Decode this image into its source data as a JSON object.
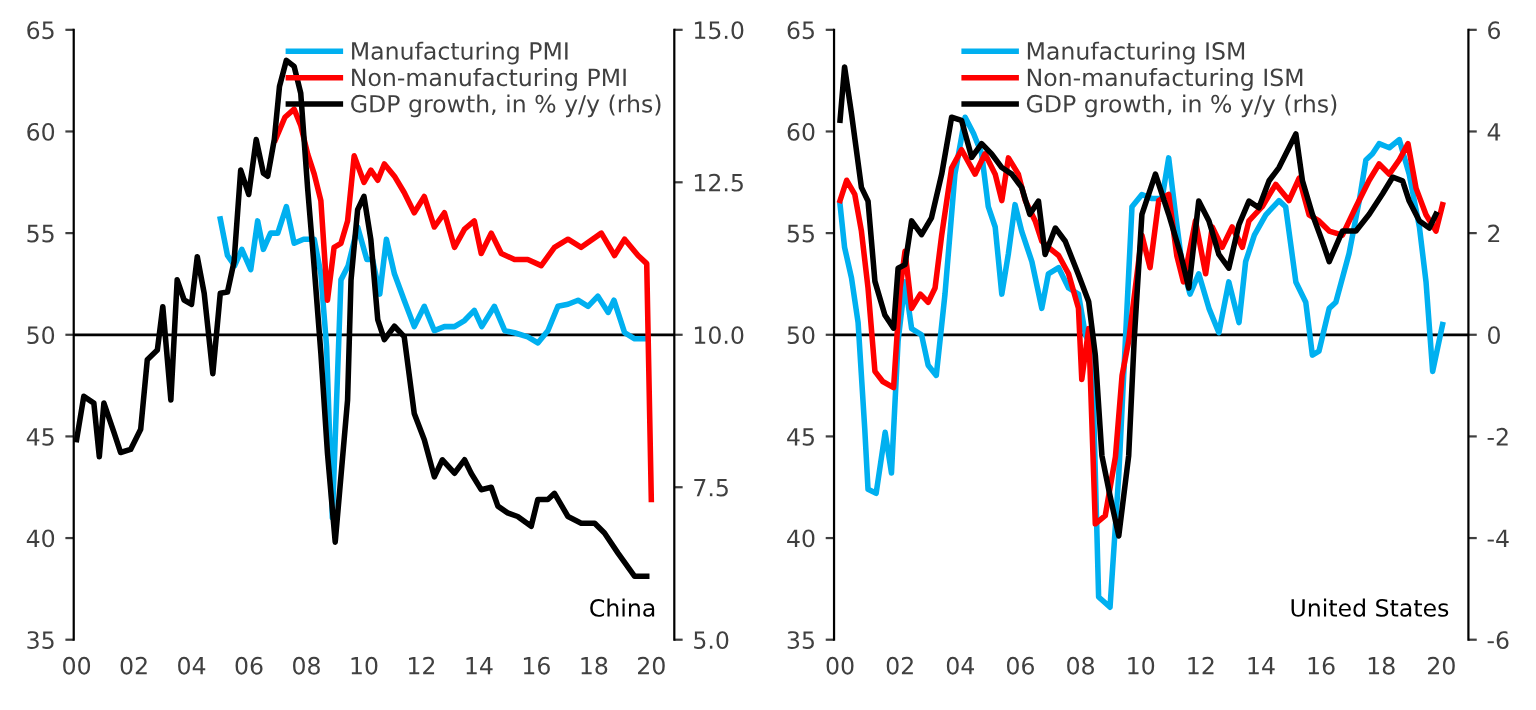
{
  "chart_data": [
    {
      "type": "line",
      "xlim": [
        1999.9,
        2020.8
      ],
      "xticks": [
        {
          "value": 2000,
          "label": "00"
        },
        {
          "value": 2002,
          "label": "02"
        },
        {
          "value": 2004,
          "label": "04"
        },
        {
          "value": 2006,
          "label": "06"
        },
        {
          "value": 2008,
          "label": "08"
        },
        {
          "value": 2010,
          "label": "10"
        },
        {
          "value": 2012,
          "label": "12"
        },
        {
          "value": 2014,
          "label": "14"
        },
        {
          "value": 2016,
          "label": "16"
        },
        {
          "value": 2018,
          "label": "18"
        },
        {
          "value": 2020,
          "label": "20"
        }
      ],
      "ylim": [
        35,
        65
      ],
      "yticks": [
        35,
        40,
        45,
        50,
        55,
        60,
        65
      ],
      "y2lim": [
        5,
        15
      ],
      "y2ticks": [
        {
          "value": 5,
          "label": "5.0"
        },
        {
          "value": 7.5,
          "label": "7.5"
        },
        {
          "value": 10,
          "label": "10.0"
        },
        {
          "value": 12.5,
          "label": "12.5"
        },
        {
          "value": 15,
          "label": "15.0"
        }
      ],
      "grid": false,
      "legend": "top right",
      "ref_lines": [
        {
          "axis": "y",
          "value": 50,
          "color": "#000000"
        }
      ],
      "annotations": [
        "China"
      ],
      "series": [
        {
          "name": "Manufacturing PMI",
          "color": "#00b0f0",
          "x": [
            2005.0,
            2005.25,
            2005.5,
            2005.75,
            2006.06,
            2006.3,
            2006.5,
            2006.75,
            2007.0,
            2007.3,
            2007.57,
            2007.9,
            2008.27,
            2008.5,
            2008.7,
            2008.9,
            2009.2,
            2009.45,
            2009.78,
            2010.1,
            2010.3,
            2010.55,
            2010.78,
            2011.06,
            2011.4,
            2011.75,
            2012.1,
            2012.45,
            2012.8,
            2013.15,
            2013.5,
            2013.84,
            2014.1,
            2014.54,
            2014.9,
            2015.24,
            2015.7,
            2016.05,
            2016.4,
            2016.75,
            2017.1,
            2017.45,
            2017.8,
            2018.14,
            2018.5,
            2018.7,
            2019.07,
            2019.42,
            2019.77
          ],
          "values": [
            55.7,
            53.9,
            53.4,
            54.2,
            53.2,
            55.6,
            54.2,
            55.0,
            55.0,
            56.3,
            54.5,
            54.7,
            54.7,
            53.0,
            49.4,
            41.0,
            52.7,
            53.4,
            55.3,
            53.7,
            53.7,
            52.0,
            54.7,
            53.0,
            51.7,
            50.4,
            51.4,
            50.2,
            50.4,
            50.4,
            50.7,
            51.2,
            50.4,
            51.4,
            50.2,
            50.1,
            49.9,
            49.6,
            50.2,
            51.4,
            51.5,
            51.7,
            51.4,
            51.9,
            51.1,
            51.7,
            50.1,
            49.8,
            49.8
          ]
        },
        {
          "name": "Non-manufacturing PMI",
          "color": "#ff0000",
          "x": [
            2006.92,
            2007.25,
            2007.57,
            2007.8,
            2008.04,
            2008.27,
            2008.5,
            2008.73,
            2008.96,
            2009.2,
            2009.43,
            2009.66,
            2010.0,
            2010.24,
            2010.48,
            2010.71,
            2011.06,
            2011.4,
            2011.75,
            2012.1,
            2012.45,
            2012.8,
            2013.15,
            2013.5,
            2013.84,
            2014.08,
            2014.43,
            2014.78,
            2015.24,
            2015.7,
            2016.17,
            2016.63,
            2017.1,
            2017.56,
            2018.26,
            2018.72,
            2019.07,
            2019.54,
            2019.84,
            2020.0
          ],
          "values": [
            59.6,
            60.7,
            61.1,
            60.3,
            58.9,
            57.9,
            56.6,
            51.7,
            54.3,
            54.5,
            55.6,
            58.8,
            57.5,
            58.1,
            57.6,
            58.4,
            57.8,
            57.0,
            56.0,
            56.8,
            55.3,
            56.0,
            54.3,
            55.2,
            55.6,
            54.0,
            55.0,
            54.0,
            53.7,
            53.7,
            53.4,
            54.3,
            54.7,
            54.3,
            55.0,
            53.9,
            54.7,
            53.9,
            53.5,
            41.9
          ]
        },
        {
          "name": "GDP growth, in % y/y (rhs)",
          "color": "#000000",
          "axis": "y2",
          "x": [
            2000.0,
            2000.25,
            2000.6,
            2000.79,
            2000.95,
            2001.3,
            2001.53,
            2001.88,
            2002.23,
            2002.46,
            2002.81,
            2003.0,
            2003.28,
            2003.5,
            2003.74,
            2004.0,
            2004.2,
            2004.44,
            2004.74,
            2005.0,
            2005.25,
            2005.48,
            2005.71,
            2005.99,
            2006.25,
            2006.5,
            2006.65,
            2006.88,
            2007.06,
            2007.3,
            2007.57,
            2007.8,
            2008.04,
            2008.27,
            2008.5,
            2008.73,
            2009.0,
            2009.43,
            2009.55,
            2009.78,
            2010.0,
            2010.24,
            2010.48,
            2010.71,
            2011.06,
            2011.4,
            2011.75,
            2012.1,
            2012.45,
            2012.73,
            2013.15,
            2013.5,
            2013.73,
            2014.08,
            2014.43,
            2014.66,
            2015.0,
            2015.35,
            2015.82,
            2016.05,
            2016.4,
            2016.63,
            2017.1,
            2017.56,
            2018.03,
            2018.37,
            2018.84,
            2019.42,
            2019.84
          ],
          "values": [
            8.28,
            8.99,
            8.88,
            8.0,
            8.88,
            8.4,
            8.07,
            8.12,
            8.45,
            9.59,
            9.75,
            10.46,
            8.93,
            10.9,
            10.57,
            10.5,
            11.28,
            10.68,
            9.36,
            10.68,
            10.7,
            11.2,
            12.7,
            12.3,
            13.2,
            12.65,
            12.6,
            13.2,
            14.07,
            14.5,
            14.4,
            13.96,
            12.4,
            11.1,
            9.7,
            8.06,
            6.6,
            8.93,
            10.9,
            12.05,
            12.27,
            11.56,
            10.25,
            9.92,
            10.14,
            9.97,
            8.71,
            8.28,
            7.67,
            7.95,
            7.73,
            7.95,
            7.73,
            7.46,
            7.5,
            7.19,
            7.08,
            7.02,
            6.86,
            7.3,
            7.3,
            7.4,
            7.02,
            6.91,
            6.91,
            6.75,
            6.42,
            6.04,
            6.04
          ]
        }
      ]
    },
    {
      "type": "line",
      "xlim": [
        1999.8,
        2020.9
      ],
      "xticks": [
        {
          "value": 2000,
          "label": "00"
        },
        {
          "value": 2002,
          "label": "02"
        },
        {
          "value": 2004,
          "label": "04"
        },
        {
          "value": 2006,
          "label": "06"
        },
        {
          "value": 2008,
          "label": "08"
        },
        {
          "value": 2010,
          "label": "10"
        },
        {
          "value": 2012,
          "label": "12"
        },
        {
          "value": 2014,
          "label": "14"
        },
        {
          "value": 2016,
          "label": "16"
        },
        {
          "value": 2018,
          "label": "18"
        },
        {
          "value": 2020,
          "label": "20"
        }
      ],
      "ylim": [
        35,
        65
      ],
      "yticks": [
        35,
        40,
        45,
        50,
        55,
        60,
        65
      ],
      "y2lim": [
        -6,
        6
      ],
      "y2ticks": [
        -6,
        -4,
        -2,
        0,
        2,
        4,
        6
      ],
      "grid": false,
      "legend": "top",
      "ref_lines": [
        {
          "axis": "y",
          "value": 50,
          "color": "#000000"
        }
      ],
      "annotations": [
        "United States"
      ],
      "series": [
        {
          "name": "Manufacturing ISM",
          "color": "#00b0f0",
          "x": [
            2000.0,
            2000.15,
            2000.38,
            2000.6,
            2000.82,
            2000.93,
            2001.2,
            2001.5,
            2001.71,
            2001.93,
            2002.16,
            2002.38,
            2002.71,
            2002.93,
            2003.2,
            2003.49,
            2003.82,
            2004.16,
            2004.44,
            2004.71,
            2004.93,
            2005.16,
            2005.38,
            2005.6,
            2005.82,
            2006.04,
            2006.38,
            2006.71,
            2006.93,
            2007.27,
            2007.6,
            2007.93,
            2008.16,
            2008.38,
            2008.6,
            2008.98,
            2009.27,
            2009.71,
            2010.04,
            2010.38,
            2010.71,
            2010.93,
            2011.16,
            2011.38,
            2011.64,
            2011.93,
            2012.27,
            2012.6,
            2012.93,
            2013.27,
            2013.49,
            2013.78,
            2014.16,
            2014.6,
            2014.82,
            2015.16,
            2015.49,
            2015.71,
            2015.93,
            2016.27,
            2016.49,
            2016.93,
            2017.27,
            2017.49,
            2017.71,
            2017.93,
            2018.27,
            2018.6,
            2018.93,
            2019.27,
            2019.49,
            2019.71,
            2020.04
          ],
          "values": [
            56.4,
            54.3,
            52.8,
            50.6,
            45.4,
            42.4,
            42.2,
            45.2,
            43.2,
            49.7,
            52.6,
            50.3,
            50.0,
            48.5,
            48.0,
            52.0,
            57.9,
            60.7,
            59.9,
            58.9,
            56.3,
            55.3,
            52.0,
            54.0,
            56.4,
            55.1,
            53.6,
            51.3,
            53.0,
            53.3,
            52.3,
            52.0,
            50.0,
            49.3,
            37.1,
            36.6,
            43.1,
            56.3,
            56.9,
            56.7,
            56.7,
            58.7,
            55.9,
            53.4,
            52.0,
            53.0,
            51.3,
            50.1,
            52.6,
            50.6,
            53.6,
            54.9,
            55.9,
            56.6,
            56.3,
            52.6,
            51.6,
            49.0,
            49.2,
            51.3,
            51.6,
            54.0,
            56.6,
            58.6,
            58.9,
            59.4,
            59.2,
            59.6,
            57.9,
            55.3,
            52.6,
            48.2,
            50.5
          ]
        },
        {
          "name": "Non-manufacturing ISM",
          "color": "#ff0000",
          "x": [
            2000.0,
            2000.22,
            2000.49,
            2000.71,
            2000.93,
            2001.16,
            2001.42,
            2001.78,
            2002.0,
            2002.16,
            2002.38,
            2002.67,
            2002.93,
            2003.16,
            2003.38,
            2003.71,
            2004.04,
            2004.49,
            2004.82,
            2005.16,
            2005.38,
            2005.6,
            2005.93,
            2006.16,
            2006.49,
            2006.71,
            2006.93,
            2007.27,
            2007.6,
            2007.93,
            2008.04,
            2008.27,
            2008.49,
            2008.82,
            2009.16,
            2009.38,
            2009.6,
            2009.82,
            2010.04,
            2010.31,
            2010.6,
            2010.93,
            2011.2,
            2011.42,
            2011.82,
            2012.16,
            2012.38,
            2012.71,
            2013.04,
            2013.38,
            2013.6,
            2014.04,
            2014.49,
            2014.93,
            2015.27,
            2015.6,
            2015.93,
            2016.27,
            2016.71,
            2017.16,
            2017.6,
            2017.93,
            2018.27,
            2018.6,
            2018.89,
            2019.16,
            2019.49,
            2019.82,
            2020.04
          ],
          "values": [
            56.6,
            57.6,
            56.9,
            55.1,
            52.3,
            48.2,
            47.7,
            47.4,
            52.3,
            54.1,
            51.3,
            52.0,
            51.6,
            52.3,
            54.9,
            58.2,
            59.1,
            57.9,
            58.9,
            57.9,
            56.6,
            58.7,
            57.9,
            56.6,
            55.6,
            54.6,
            54.3,
            53.9,
            53.0,
            51.3,
            47.8,
            50.3,
            40.7,
            41.1,
            44.0,
            48.0,
            49.7,
            52.3,
            54.9,
            53.3,
            56.6,
            56.9,
            53.9,
            52.6,
            55.6,
            53.0,
            55.3,
            54.3,
            55.3,
            54.3,
            55.6,
            56.3,
            57.4,
            56.6,
            57.7,
            55.9,
            55.6,
            55.1,
            54.9,
            56.3,
            57.6,
            58.4,
            57.9,
            58.6,
            59.4,
            57.2,
            55.9,
            55.1,
            56.4
          ]
        },
        {
          "name": "GDP growth, in % y/y (rhs)",
          "color": "#000000",
          "axis": "y2",
          "x": [
            2000.0,
            2000.15,
            2000.38,
            2000.71,
            2000.93,
            2001.16,
            2001.49,
            2001.78,
            2001.93,
            2002.16,
            2002.38,
            2002.71,
            2003.04,
            2003.38,
            2003.71,
            2004.04,
            2004.38,
            2004.71,
            2005.04,
            2005.38,
            2005.71,
            2006.04,
            2006.31,
            2006.6,
            2006.82,
            2007.16,
            2007.49,
            2007.93,
            2008.27,
            2008.49,
            2008.71,
            2008.98,
            2009.27,
            2009.6,
            2009.78,
            2010.04,
            2010.49,
            2010.93,
            2011.33,
            2011.6,
            2011.93,
            2012.27,
            2012.6,
            2012.93,
            2013.27,
            2013.6,
            2013.93,
            2014.27,
            2014.6,
            2015.16,
            2015.38,
            2015.71,
            2016.04,
            2016.27,
            2016.71,
            2017.16,
            2017.6,
            2018.04,
            2018.38,
            2018.71,
            2018.93,
            2019.27,
            2019.6,
            2019.82
          ],
          "values": [
            4.22,
            5.27,
            4.35,
            2.9,
            2.63,
            1.05,
            0.39,
            0.13,
            1.31,
            1.38,
            2.24,
            1.97,
            2.3,
            3.16,
            4.28,
            4.22,
            3.49,
            3.76,
            3.56,
            3.29,
            3.16,
            2.9,
            2.37,
            2.63,
            1.58,
            2.1,
            1.84,
            1.18,
            0.65,
            -0.4,
            -2.38,
            -3.17,
            -3.96,
            -2.38,
            -0.14,
            2.37,
            3.16,
            2.37,
            1.58,
            0.92,
            2.63,
            2.24,
            1.58,
            1.31,
            2.17,
            2.63,
            2.5,
            3.03,
            3.29,
            3.95,
            3.03,
            2.37,
            1.84,
            1.44,
            2.04,
            2.04,
            2.37,
            2.77,
            3.1,
            3.03,
            2.63,
            2.24,
            2.1,
            2.37
          ]
        }
      ]
    }
  ]
}
